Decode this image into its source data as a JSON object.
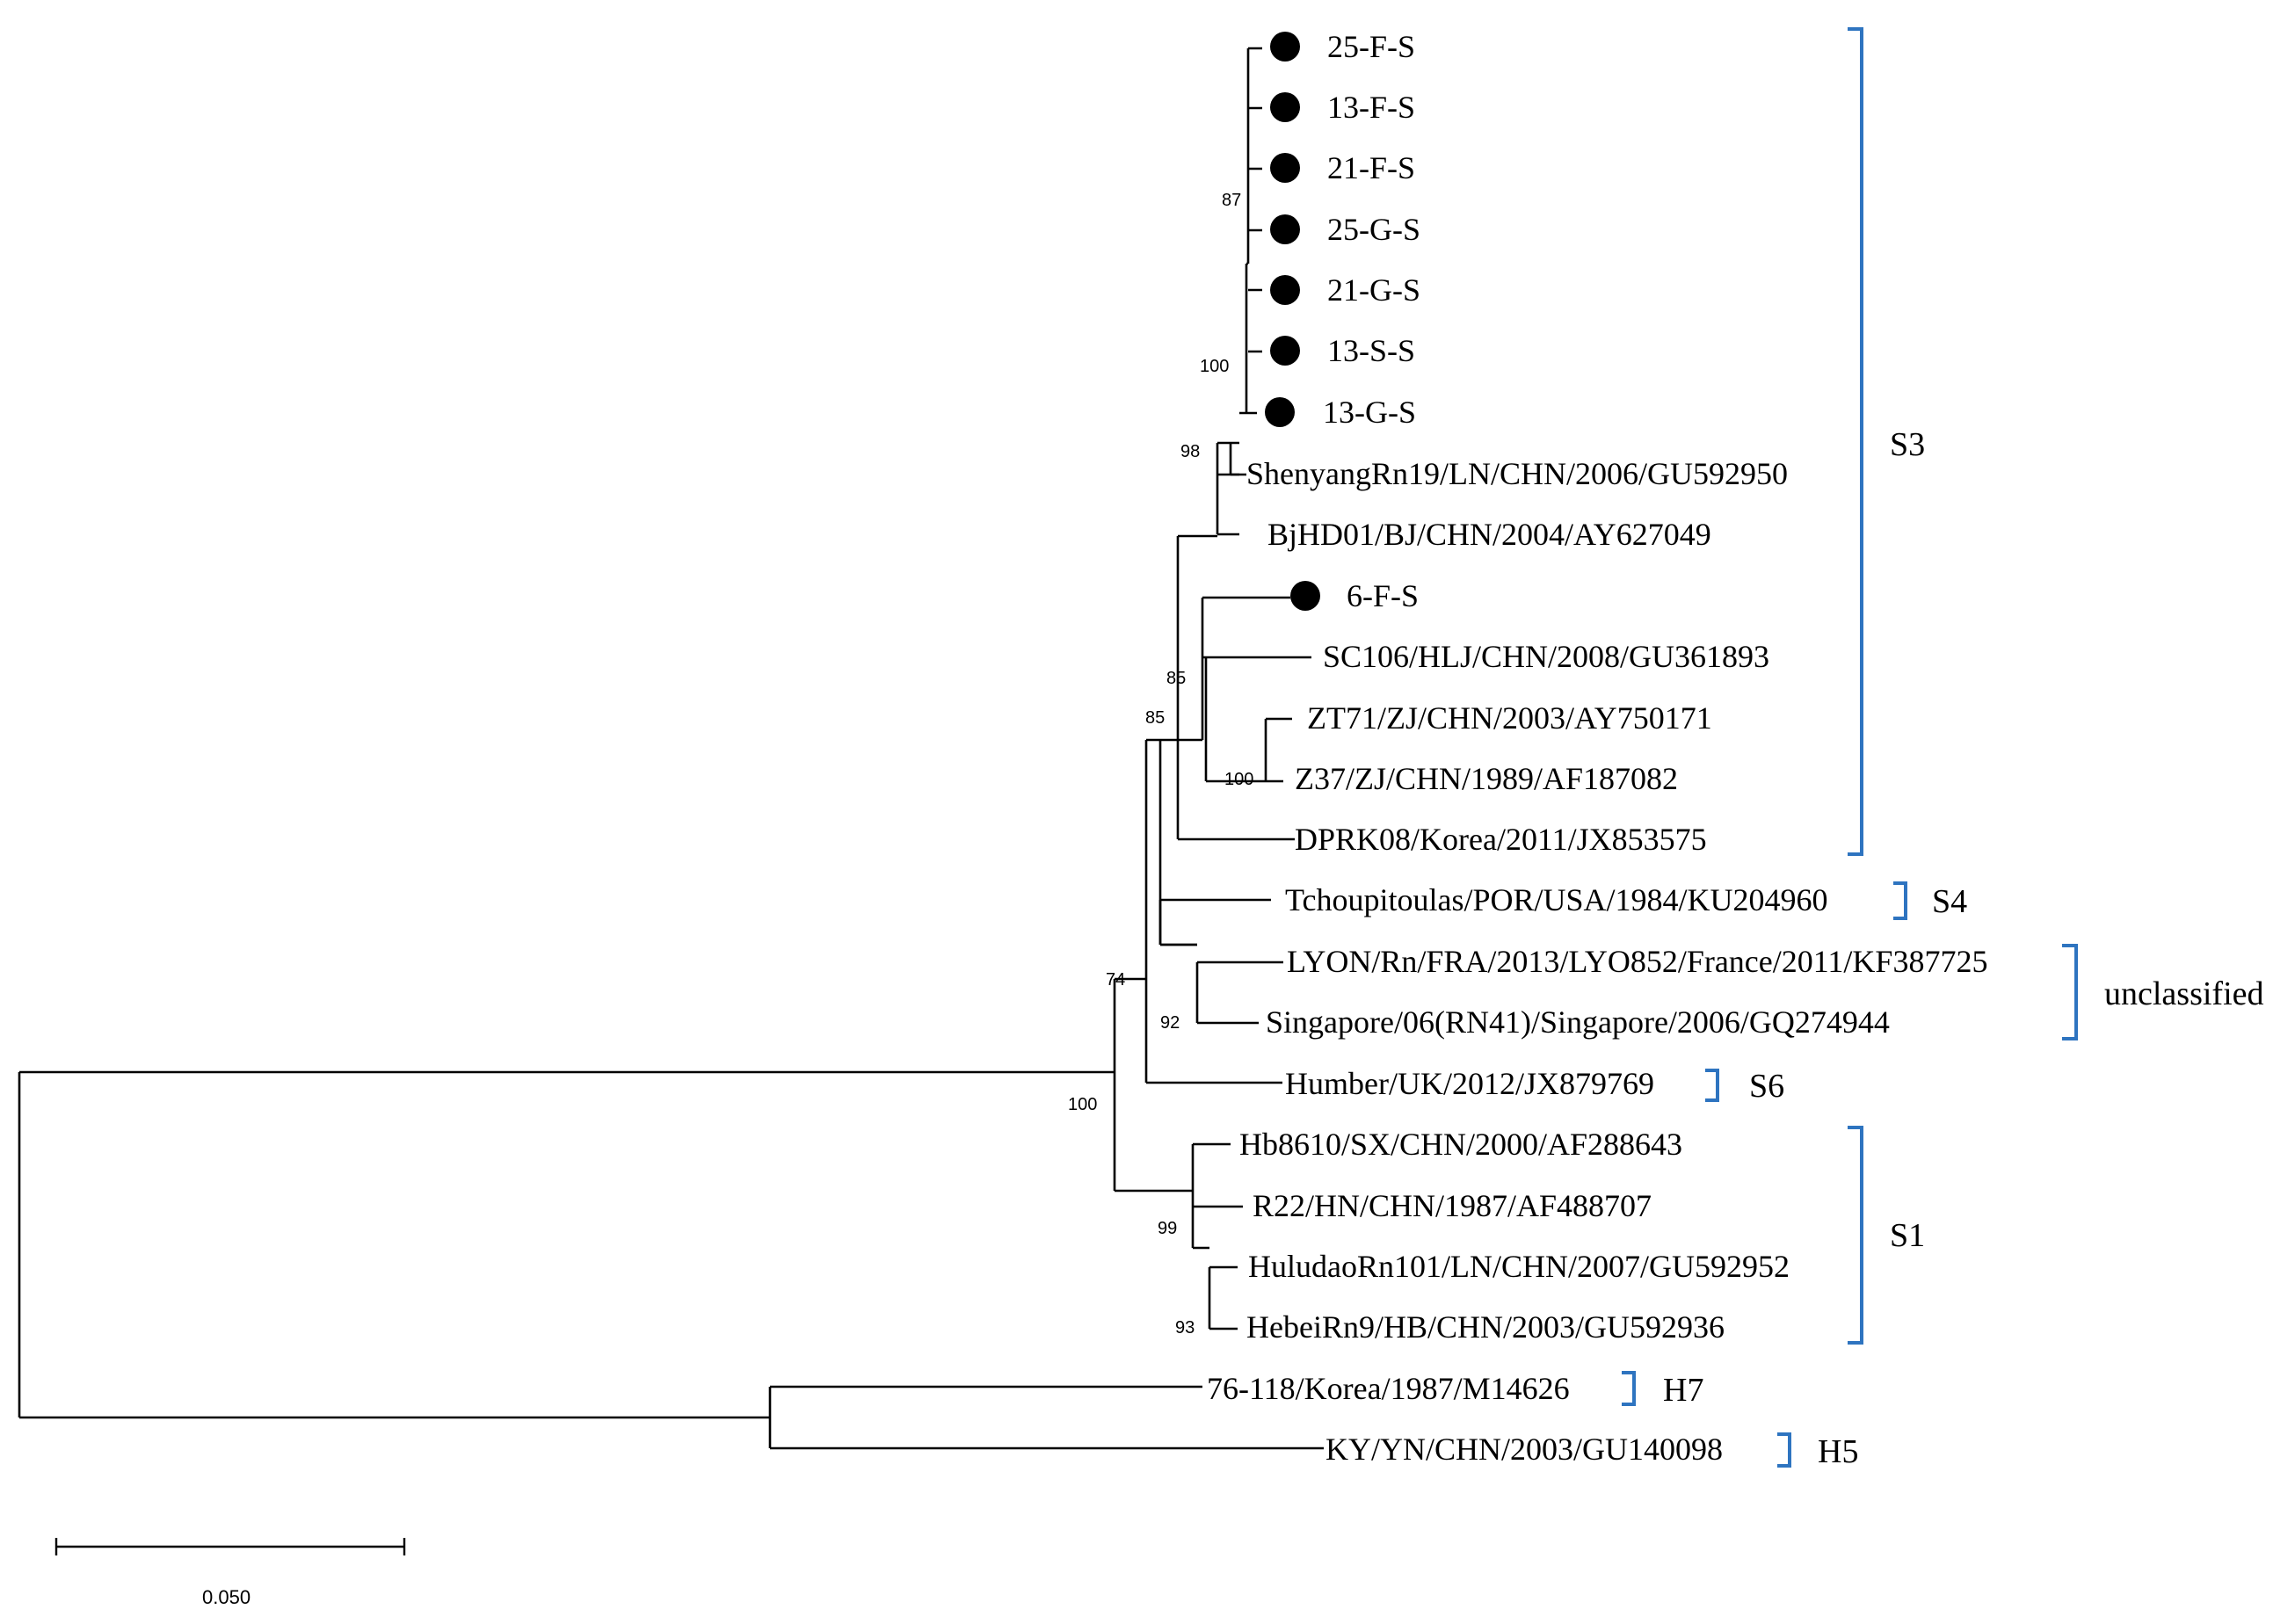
{
  "tree": {
    "leaves": [
      {
        "label": "25-F-S",
        "marked": true
      },
      {
        "label": "13-F-S",
        "marked": true
      },
      {
        "label": "21-F-S",
        "marked": true
      },
      {
        "label": "25-G-S",
        "marked": true
      },
      {
        "label": "21-G-S",
        "marked": true
      },
      {
        "label": "13-S-S",
        "marked": true
      },
      {
        "label": "13-G-S",
        "marked": true
      },
      {
        "label": "ShenyangRn19/LN/CHN/2006/GU592950",
        "marked": false
      },
      {
        "label": "BjHD01/BJ/CHN/2004/AY627049",
        "marked": false
      },
      {
        "label": "6-F-S",
        "marked": true
      },
      {
        "label": "SC106/HLJ/CHN/2008/GU361893",
        "marked": false
      },
      {
        "label": "ZT71/ZJ/CHN/2003/AY750171",
        "marked": false
      },
      {
        "label": "Z37/ZJ/CHN/1989/AF187082",
        "marked": false
      },
      {
        "label": "DPRK08/Korea/2011/JX853575",
        "marked": false
      },
      {
        "label": "Tchoupitoulas/POR/USA/1984/KU204960",
        "marked": false
      },
      {
        "label": "LYON/Rn/FRA/2013/LYO852/France/2011/KF387725",
        "marked": false
      },
      {
        "label": "Singapore/06(RN41)/Singapore/2006/GQ274944",
        "marked": false
      },
      {
        "label": "Humber/UK/2012/JX879769",
        "marked": false
      },
      {
        "label": "Hb8610/SX/CHN/2000/AF288643",
        "marked": false
      },
      {
        "label": "R22/HN/CHN/1987/AF488707",
        "marked": false
      },
      {
        "label": "HuludaoRn101/LN/CHN/2007/GU592952",
        "marked": false
      },
      {
        "label": "HebeiRn9/HB/CHN/2003/GU592936",
        "marked": false
      },
      {
        "label": "76-118/Korea/1987/M14626",
        "marked": false
      },
      {
        "label": "KY/YN/CHN/2003/GU140098",
        "marked": false
      }
    ],
    "bootstrap": [
      "87",
      "100",
      "98",
      "85",
      "85",
      "100",
      "74",
      "92",
      "100",
      "99",
      "93"
    ],
    "clades": [
      "S3",
      "S4",
      "unclassified",
      "S6",
      "S1",
      "H7",
      "H5"
    ],
    "scale_bar": {
      "value": "0.050"
    }
  },
  "colors": {
    "bracket": "#2e74c0",
    "branch": "#000000"
  }
}
